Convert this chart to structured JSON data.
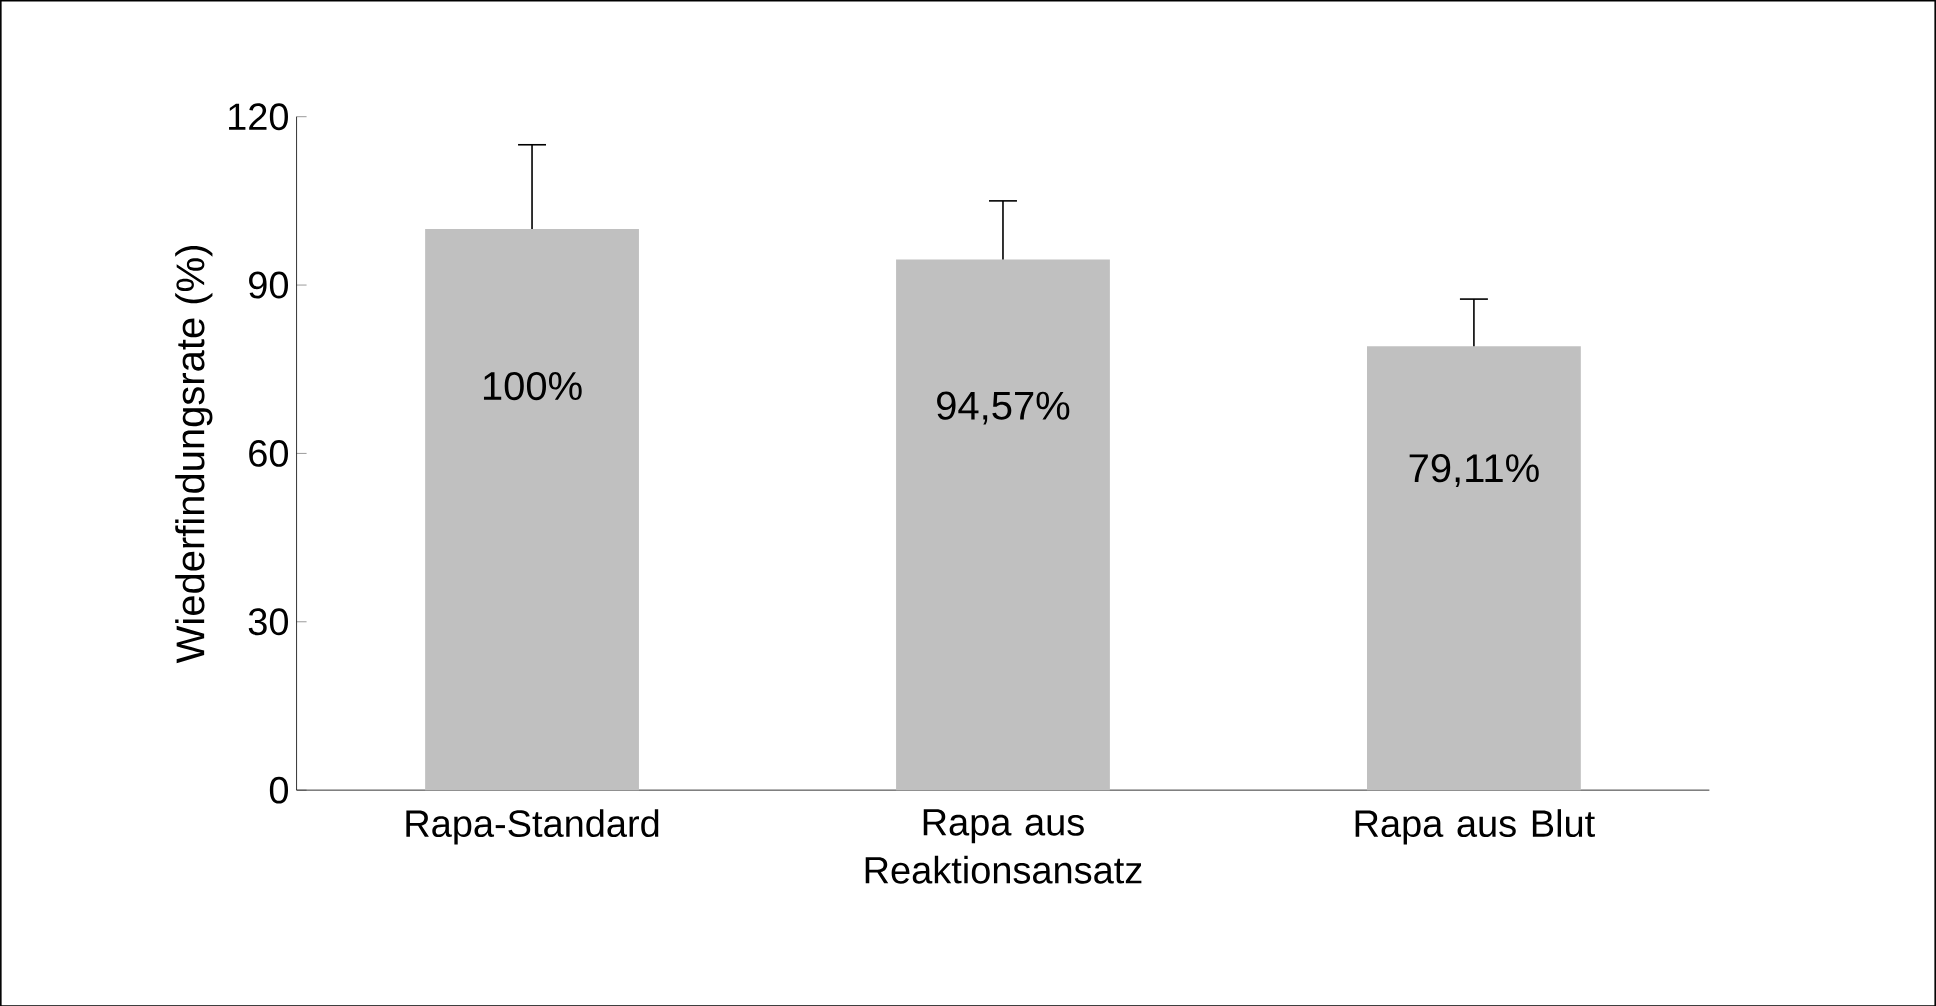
{
  "chart_data": {
    "type": "bar",
    "ylabel": "Wiederfindungsrate (%)",
    "categories": [
      "Rapa-Standard",
      "Rapa aus Reaktionsansatz",
      "Rapa aus Blut"
    ],
    "values": [
      100,
      94.57,
      79.11
    ],
    "errors": [
      [
        100,
        115
      ],
      [
        94.57,
        105
      ],
      [
        79.11,
        87.5
      ]
    ],
    "value_labels": [
      "100%",
      "94,57%",
      "79,11%"
    ],
    "color": "#c0c0c0",
    "ylim": [
      0,
      120
    ],
    "yticks": [
      0,
      30,
      60,
      90,
      120
    ],
    "grid": false
  }
}
